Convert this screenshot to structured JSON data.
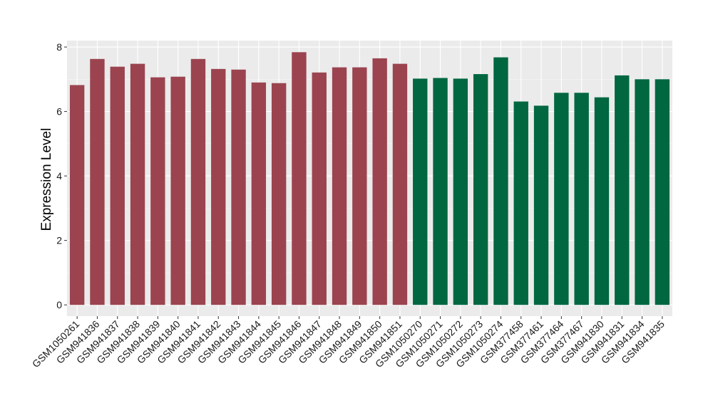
{
  "chart_data": {
    "type": "bar",
    "title": "",
    "xlabel": "",
    "ylabel": "Expression Level",
    "ylim": [
      -0.35,
      8.2
    ],
    "yticks": [
      0,
      2,
      4,
      6,
      8
    ],
    "grid": true,
    "panel_color": "#ebebeb",
    "categories": [
      "GSM1050261",
      "GSM941836",
      "GSM941837",
      "GSM941838",
      "GSM941839",
      "GSM941840",
      "GSM941841",
      "GSM941842",
      "GSM941843",
      "GSM941844",
      "GSM941845",
      "GSM941846",
      "GSM941847",
      "GSM941848",
      "GSM941849",
      "GSM941850",
      "GSM941851",
      "GSM1050270",
      "GSM1050271",
      "GSM1050272",
      "GSM1050273",
      "GSM1050274",
      "GSM377458",
      "GSM377461",
      "GSM377464",
      "GSM377467",
      "GSM941830",
      "GSM941831",
      "GSM941834",
      "GSM941835"
    ],
    "values": [
      6.82,
      7.63,
      7.39,
      7.48,
      7.06,
      7.08,
      7.63,
      7.32,
      7.3,
      6.9,
      6.88,
      7.84,
      7.21,
      7.37,
      7.37,
      7.65,
      7.48,
      7.02,
      7.04,
      7.02,
      7.16,
      7.68,
      6.31,
      6.18,
      6.58,
      6.58,
      6.44,
      7.12,
      7.0,
      7.0
    ],
    "groups": [
      {
        "color": "#9b4450",
        "count": 17
      },
      {
        "color": "#006741",
        "count": 13
      }
    ]
  }
}
